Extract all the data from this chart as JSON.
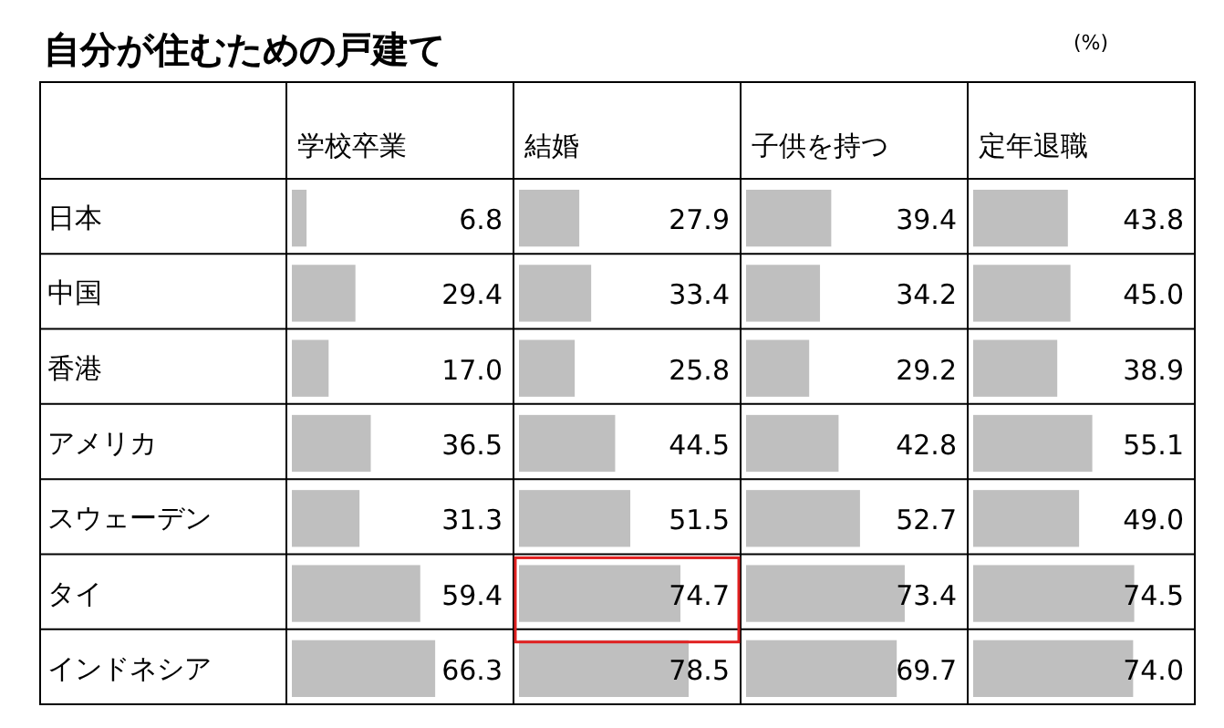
{
  "chart_data": [
    {
      "type": "bar",
      "orientation": "horizontal",
      "title": "自分が住むための戸建て",
      "annotations": [
        "(%)"
      ],
      "subtitle": "学校卒業",
      "categories": [
        "日本",
        "中国",
        "香港",
        "アメリカ",
        "スウェーデン",
        "タイ",
        "インドネシア"
      ],
      "values": [
        6.8,
        29.4,
        17.0,
        36.5,
        31.3,
        59.4,
        66.3
      ],
      "value_labels": [
        "6.8",
        "29.4",
        "17.0",
        "36.5",
        "31.3",
        "59.4",
        "66.3"
      ],
      "color": "#bfbfbf",
      "xlim": [
        0,
        100
      ],
      "tick_labels": "y"
    },
    {
      "type": "bar",
      "orientation": "horizontal",
      "subtitle": "結婚",
      "values": [
        27.9,
        33.4,
        25.8,
        44.5,
        51.5,
        74.7,
        78.5
      ],
      "value_labels": [
        "27.9",
        "33.4",
        "25.8",
        "44.5",
        "51.5",
        "74.7",
        "78.5"
      ],
      "color": "#bfbfbf",
      "xlim": [
        0,
        100
      ]
    },
    {
      "type": "bar",
      "orientation": "horizontal",
      "subtitle": "子供を持つ",
      "values": [
        39.4,
        34.2,
        29.2,
        42.8,
        52.7,
        73.4,
        69.7
      ],
      "value_labels": [
        "39.4",
        "34.2",
        "29.2",
        "42.8",
        "52.7",
        "73.4",
        "69.7"
      ],
      "color": "#bfbfbf",
      "xlim": [
        0,
        100
      ]
    },
    {
      "type": "bar",
      "orientation": "horizontal",
      "subtitle": "定年退職",
      "values": [
        43.8,
        45.0,
        38.9,
        55.1,
        49.0,
        74.5,
        74.0
      ],
      "value_labels": [
        "43.8",
        "45.0",
        "38.9",
        "55.1",
        "49.0",
        "74.5",
        "74.0"
      ],
      "color": "#bfbfbf",
      "xlim": [
        0,
        100
      ]
    }
  ]
}
